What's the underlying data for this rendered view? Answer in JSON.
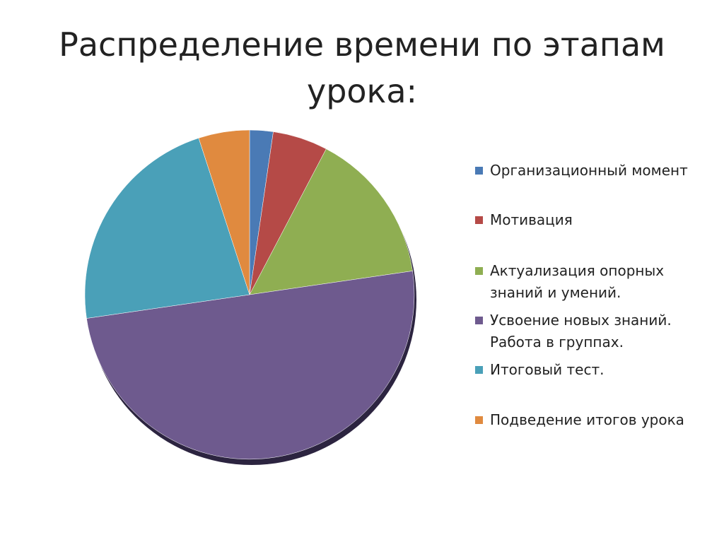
{
  "chart_data": {
    "type": "pie",
    "title": "Распределение времени по этапам урока:",
    "categories": [
      "Организационный момент",
      "Мотивация",
      "Актуализация опорных знаний и умений.",
      "Усвоение новых знаний. Работа в группах.",
      "Итоговый тест.",
      "Подведение итогов урока"
    ],
    "values": [
      2.3,
      5.4,
      15,
      50,
      22.3,
      5
    ],
    "colors": [
      "#4a7ab5",
      "#b54a47",
      "#8fae52",
      "#6e5a8e",
      "#4aa0b8",
      "#e08a3f"
    ],
    "legend": "right"
  }
}
